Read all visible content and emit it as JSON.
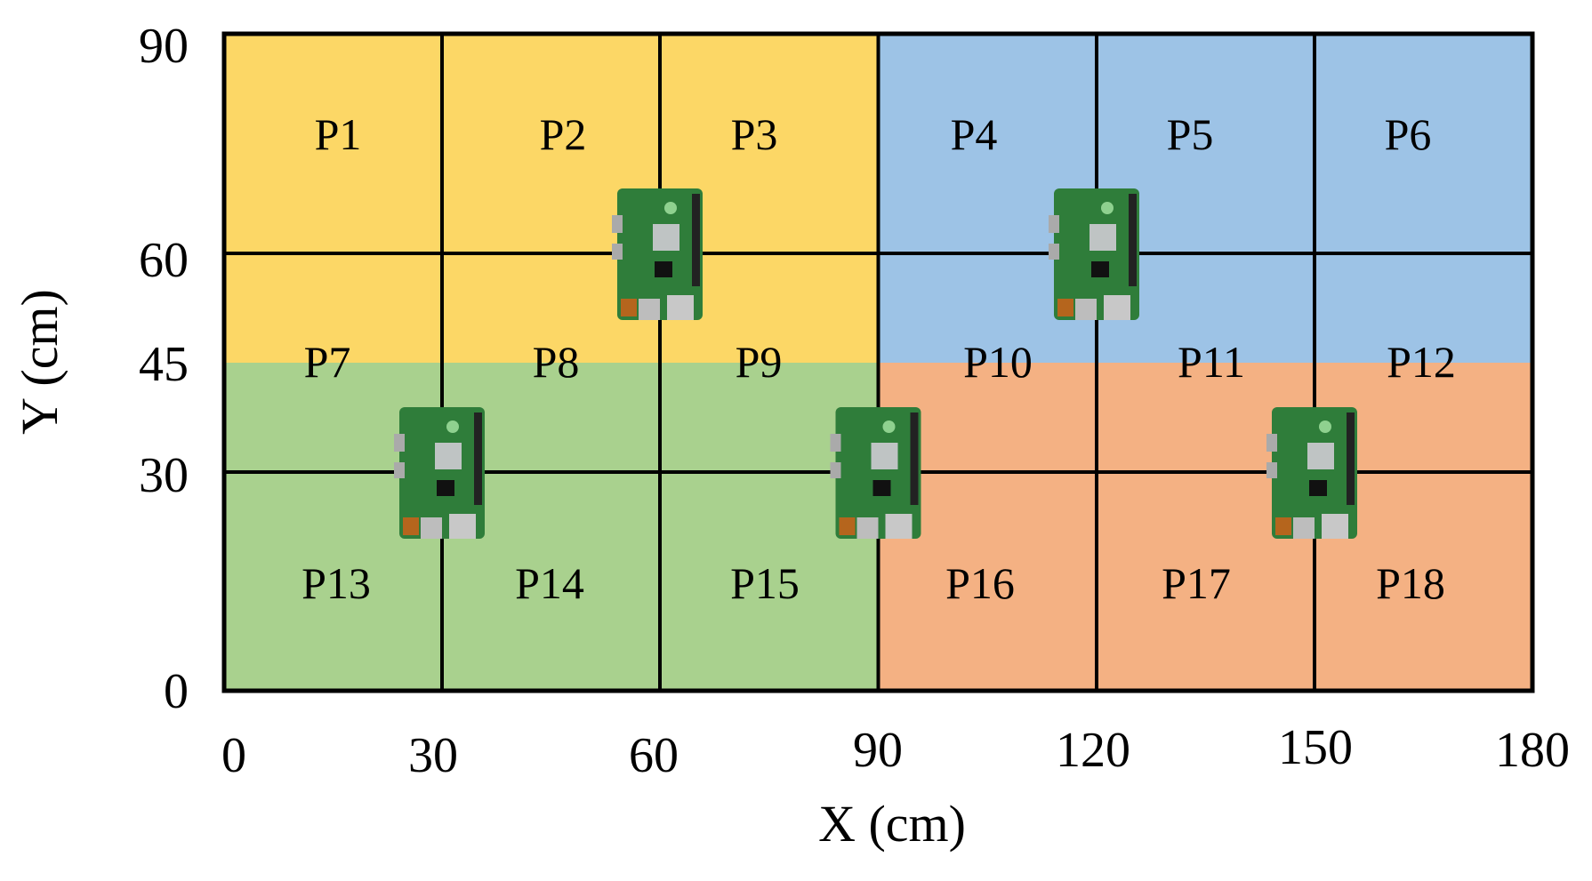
{
  "x_axis": {
    "title": "X (cm)",
    "ticks": [
      "0",
      "30",
      "60",
      "90",
      "120",
      "150",
      "180"
    ]
  },
  "y_axis": {
    "title": "Y (cm)",
    "ticks": [
      "0",
      "30",
      "45",
      "60",
      "90"
    ]
  },
  "cells": [
    "P1",
    "P2",
    "P3",
    "P4",
    "P5",
    "P6",
    "P7",
    "P8",
    "P9",
    "P10",
    "P11",
    "P12",
    "P13",
    "P14",
    "P15",
    "P16",
    "P17",
    "P18"
  ]
}
